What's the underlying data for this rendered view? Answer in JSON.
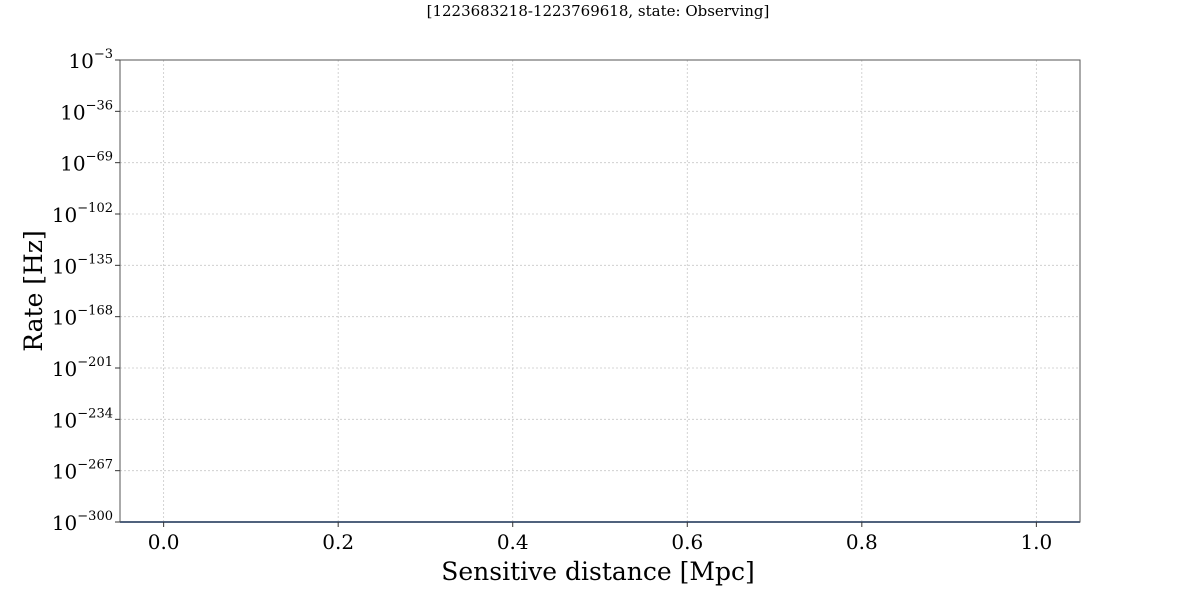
{
  "chart_data": {
    "type": "line",
    "title": "",
    "subtitle": "[1223683218-1223769618, state: Observing]",
    "xlabel": "Sensitive distance [Mpc]",
    "ylabel": "Rate [Hz]",
    "xlim": [
      -0.05,
      1.05
    ],
    "ylim": [
      1e-300,
      0.001
    ],
    "yscale": "log",
    "grid": true,
    "x_ticks": [
      "0.0",
      "0.2",
      "0.4",
      "0.6",
      "0.8",
      "1.0"
    ],
    "y_ticks": [
      {
        "base": "10",
        "exp": "−3"
      },
      {
        "base": "10",
        "exp": "−36"
      },
      {
        "base": "10",
        "exp": "−69"
      },
      {
        "base": "10",
        "exp": "−102"
      },
      {
        "base": "10",
        "exp": "−135"
      },
      {
        "base": "10",
        "exp": "−168"
      },
      {
        "base": "10",
        "exp": "−201"
      },
      {
        "base": "10",
        "exp": "−234"
      },
      {
        "base": "10",
        "exp": "−267"
      },
      {
        "base": "10",
        "exp": "−300"
      }
    ],
    "series": [
      {
        "color": "#4a6fa5",
        "x": [
          -0.05,
          1.05
        ],
        "y": [
          1e-300,
          1e-300
        ]
      }
    ]
  }
}
